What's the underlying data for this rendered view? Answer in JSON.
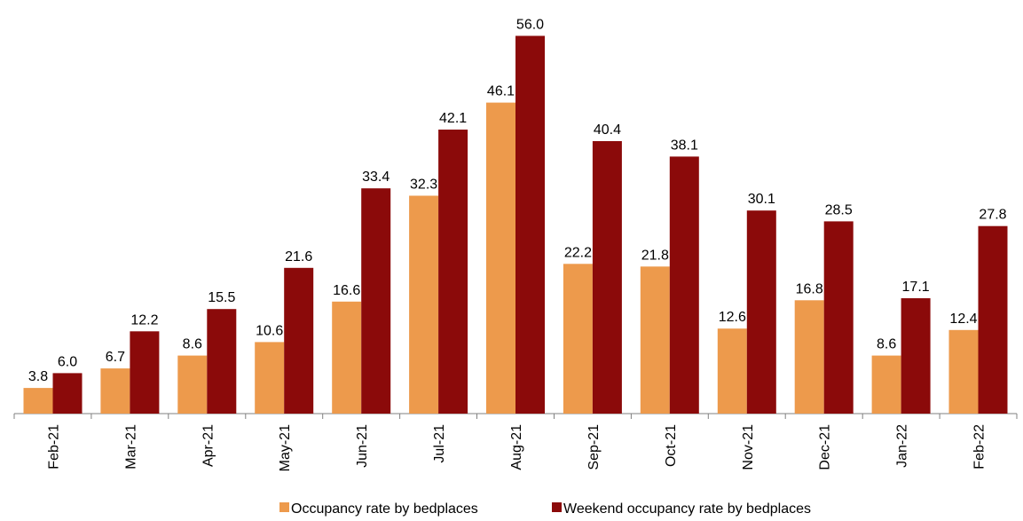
{
  "colors": {
    "occupancy": "#ED9A4C",
    "weekend": "#8B0A0A",
    "axis": "#808080"
  },
  "chart_data": {
    "type": "bar",
    "categories": [
      "Feb-21",
      "Mar-21",
      "Apr-21",
      "May-21",
      "Jun-21",
      "Jul-21",
      "Aug-21",
      "Sep-21",
      "Oct-21",
      "Nov-21",
      "Dec-21",
      "Jan-22",
      "Feb-22"
    ],
    "series": [
      {
        "name": "Occupancy rate by bedplaces",
        "values": [
          3.8,
          6.7,
          8.6,
          10.6,
          16.6,
          32.3,
          46.1,
          22.2,
          21.8,
          12.6,
          16.8,
          8.6,
          12.4
        ]
      },
      {
        "name": "Weekend occupancy rate by bedplaces",
        "values": [
          6.0,
          12.2,
          15.5,
          21.6,
          33.4,
          42.1,
          56.0,
          40.4,
          38.1,
          30.1,
          28.5,
          17.1,
          27.8
        ]
      }
    ],
    "ylim": [
      0,
      60
    ],
    "grid": false,
    "legend": "bottom"
  }
}
